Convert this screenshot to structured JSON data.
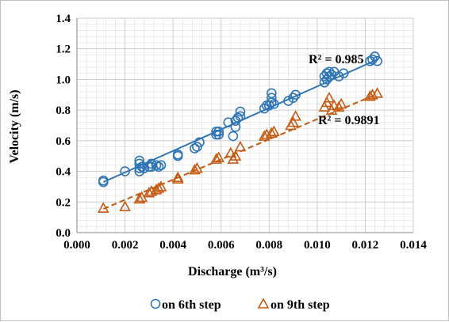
{
  "chart_data": {
    "type": "scatter",
    "xlabel": "Discharge (m³/s)",
    "ylabel": "Velocity (m/s)",
    "xlim": [
      0,
      0.014
    ],
    "ylim": [
      0,
      1.4
    ],
    "x_ticks": [
      0.0,
      0.002,
      0.004,
      0.006,
      0.008,
      0.01,
      0.012,
      0.014
    ],
    "x_tick_labels": [
      "0.000",
      "0.002",
      "0.004",
      "0.006",
      "0.008",
      "0.010",
      "0.012",
      "0.014"
    ],
    "y_ticks": [
      0.0,
      0.2,
      0.4,
      0.6,
      0.8,
      1.0,
      1.2,
      1.4
    ],
    "y_tick_labels": [
      "0.0",
      "0.2",
      "0.4",
      "0.6",
      "0.8",
      "1.0",
      "1.2",
      "1.4"
    ],
    "grid": true,
    "legend_position": "bottom",
    "series": [
      {
        "name": "on 6th step",
        "marker": "circle",
        "color": "#2e75b6",
        "points": [
          [
            0.0011,
            0.33
          ],
          [
            0.0011,
            0.34
          ],
          [
            0.002,
            0.4
          ],
          [
            0.0026,
            0.4
          ],
          [
            0.0026,
            0.42
          ],
          [
            0.0026,
            0.45
          ],
          [
            0.0026,
            0.47
          ],
          [
            0.0027,
            0.43
          ],
          [
            0.0028,
            0.42
          ],
          [
            0.003,
            0.43
          ],
          [
            0.0031,
            0.43
          ],
          [
            0.0031,
            0.45
          ],
          [
            0.0033,
            0.44
          ],
          [
            0.0034,
            0.43
          ],
          [
            0.0035,
            0.44
          ],
          [
            0.0042,
            0.5
          ],
          [
            0.0042,
            0.51
          ],
          [
            0.0049,
            0.55
          ],
          [
            0.005,
            0.56
          ],
          [
            0.0051,
            0.59
          ],
          [
            0.0058,
            0.64
          ],
          [
            0.0058,
            0.66
          ],
          [
            0.0059,
            0.64
          ],
          [
            0.0059,
            0.66
          ],
          [
            0.0063,
            0.72
          ],
          [
            0.0065,
            0.63
          ],
          [
            0.0066,
            0.69
          ],
          [
            0.0066,
            0.73
          ],
          [
            0.0067,
            0.75
          ],
          [
            0.0068,
            0.76
          ],
          [
            0.0068,
            0.79
          ],
          [
            0.0078,
            0.81
          ],
          [
            0.0079,
            0.83
          ],
          [
            0.008,
            0.83
          ],
          [
            0.0081,
            0.85
          ],
          [
            0.0081,
            0.88
          ],
          [
            0.0081,
            0.91
          ],
          [
            0.0082,
            0.84
          ],
          [
            0.0088,
            0.86
          ],
          [
            0.009,
            0.88
          ],
          [
            0.0091,
            0.9
          ],
          [
            0.0103,
            0.98
          ],
          [
            0.0103,
            1.02
          ],
          [
            0.0104,
            1.0
          ],
          [
            0.0104,
            1.04
          ],
          [
            0.0105,
            1.02
          ],
          [
            0.0105,
            1.05
          ],
          [
            0.0106,
            1.03
          ],
          [
            0.0107,
            1.05
          ],
          [
            0.0109,
            1.02
          ],
          [
            0.0111,
            1.04
          ],
          [
            0.0122,
            1.12
          ],
          [
            0.0123,
            1.13
          ],
          [
            0.0124,
            1.15
          ],
          [
            0.0125,
            1.12
          ]
        ],
        "trend_line": {
          "x": [
            0.0011,
            0.0125
          ],
          "y": [
            0.33,
            1.13
          ]
        },
        "r2_label": "R² = 0.985"
      },
      {
        "name": "on 9th step",
        "marker": "triangle",
        "color": "#c55a11",
        "points": [
          [
            0.0011,
            0.16
          ],
          [
            0.002,
            0.17
          ],
          [
            0.0026,
            0.22
          ],
          [
            0.0027,
            0.23
          ],
          [
            0.003,
            0.26
          ],
          [
            0.0031,
            0.27
          ],
          [
            0.0033,
            0.28
          ],
          [
            0.0034,
            0.29
          ],
          [
            0.0035,
            0.3
          ],
          [
            0.0042,
            0.35
          ],
          [
            0.0042,
            0.36
          ],
          [
            0.0049,
            0.41
          ],
          [
            0.005,
            0.42
          ],
          [
            0.0058,
            0.48
          ],
          [
            0.0059,
            0.49
          ],
          [
            0.0064,
            0.52
          ],
          [
            0.0065,
            0.48
          ],
          [
            0.0066,
            0.5
          ],
          [
            0.0068,
            0.56
          ],
          [
            0.0078,
            0.63
          ],
          [
            0.0079,
            0.64
          ],
          [
            0.0081,
            0.65
          ],
          [
            0.0082,
            0.66
          ],
          [
            0.0089,
            0.7
          ],
          [
            0.009,
            0.72
          ],
          [
            0.0091,
            0.76
          ],
          [
            0.0103,
            0.82
          ],
          [
            0.0104,
            0.85
          ],
          [
            0.0105,
            0.88
          ],
          [
            0.0106,
            0.8
          ],
          [
            0.0107,
            0.83
          ],
          [
            0.0109,
            0.82
          ],
          [
            0.011,
            0.84
          ],
          [
            0.0122,
            0.89
          ],
          [
            0.0123,
            0.9
          ],
          [
            0.0125,
            0.91
          ]
        ],
        "trend_line": {
          "x": [
            0.0011,
            0.0125
          ],
          "y": [
            0.155,
            0.905
          ]
        },
        "r2_label": "R² = 0.9891"
      }
    ]
  }
}
